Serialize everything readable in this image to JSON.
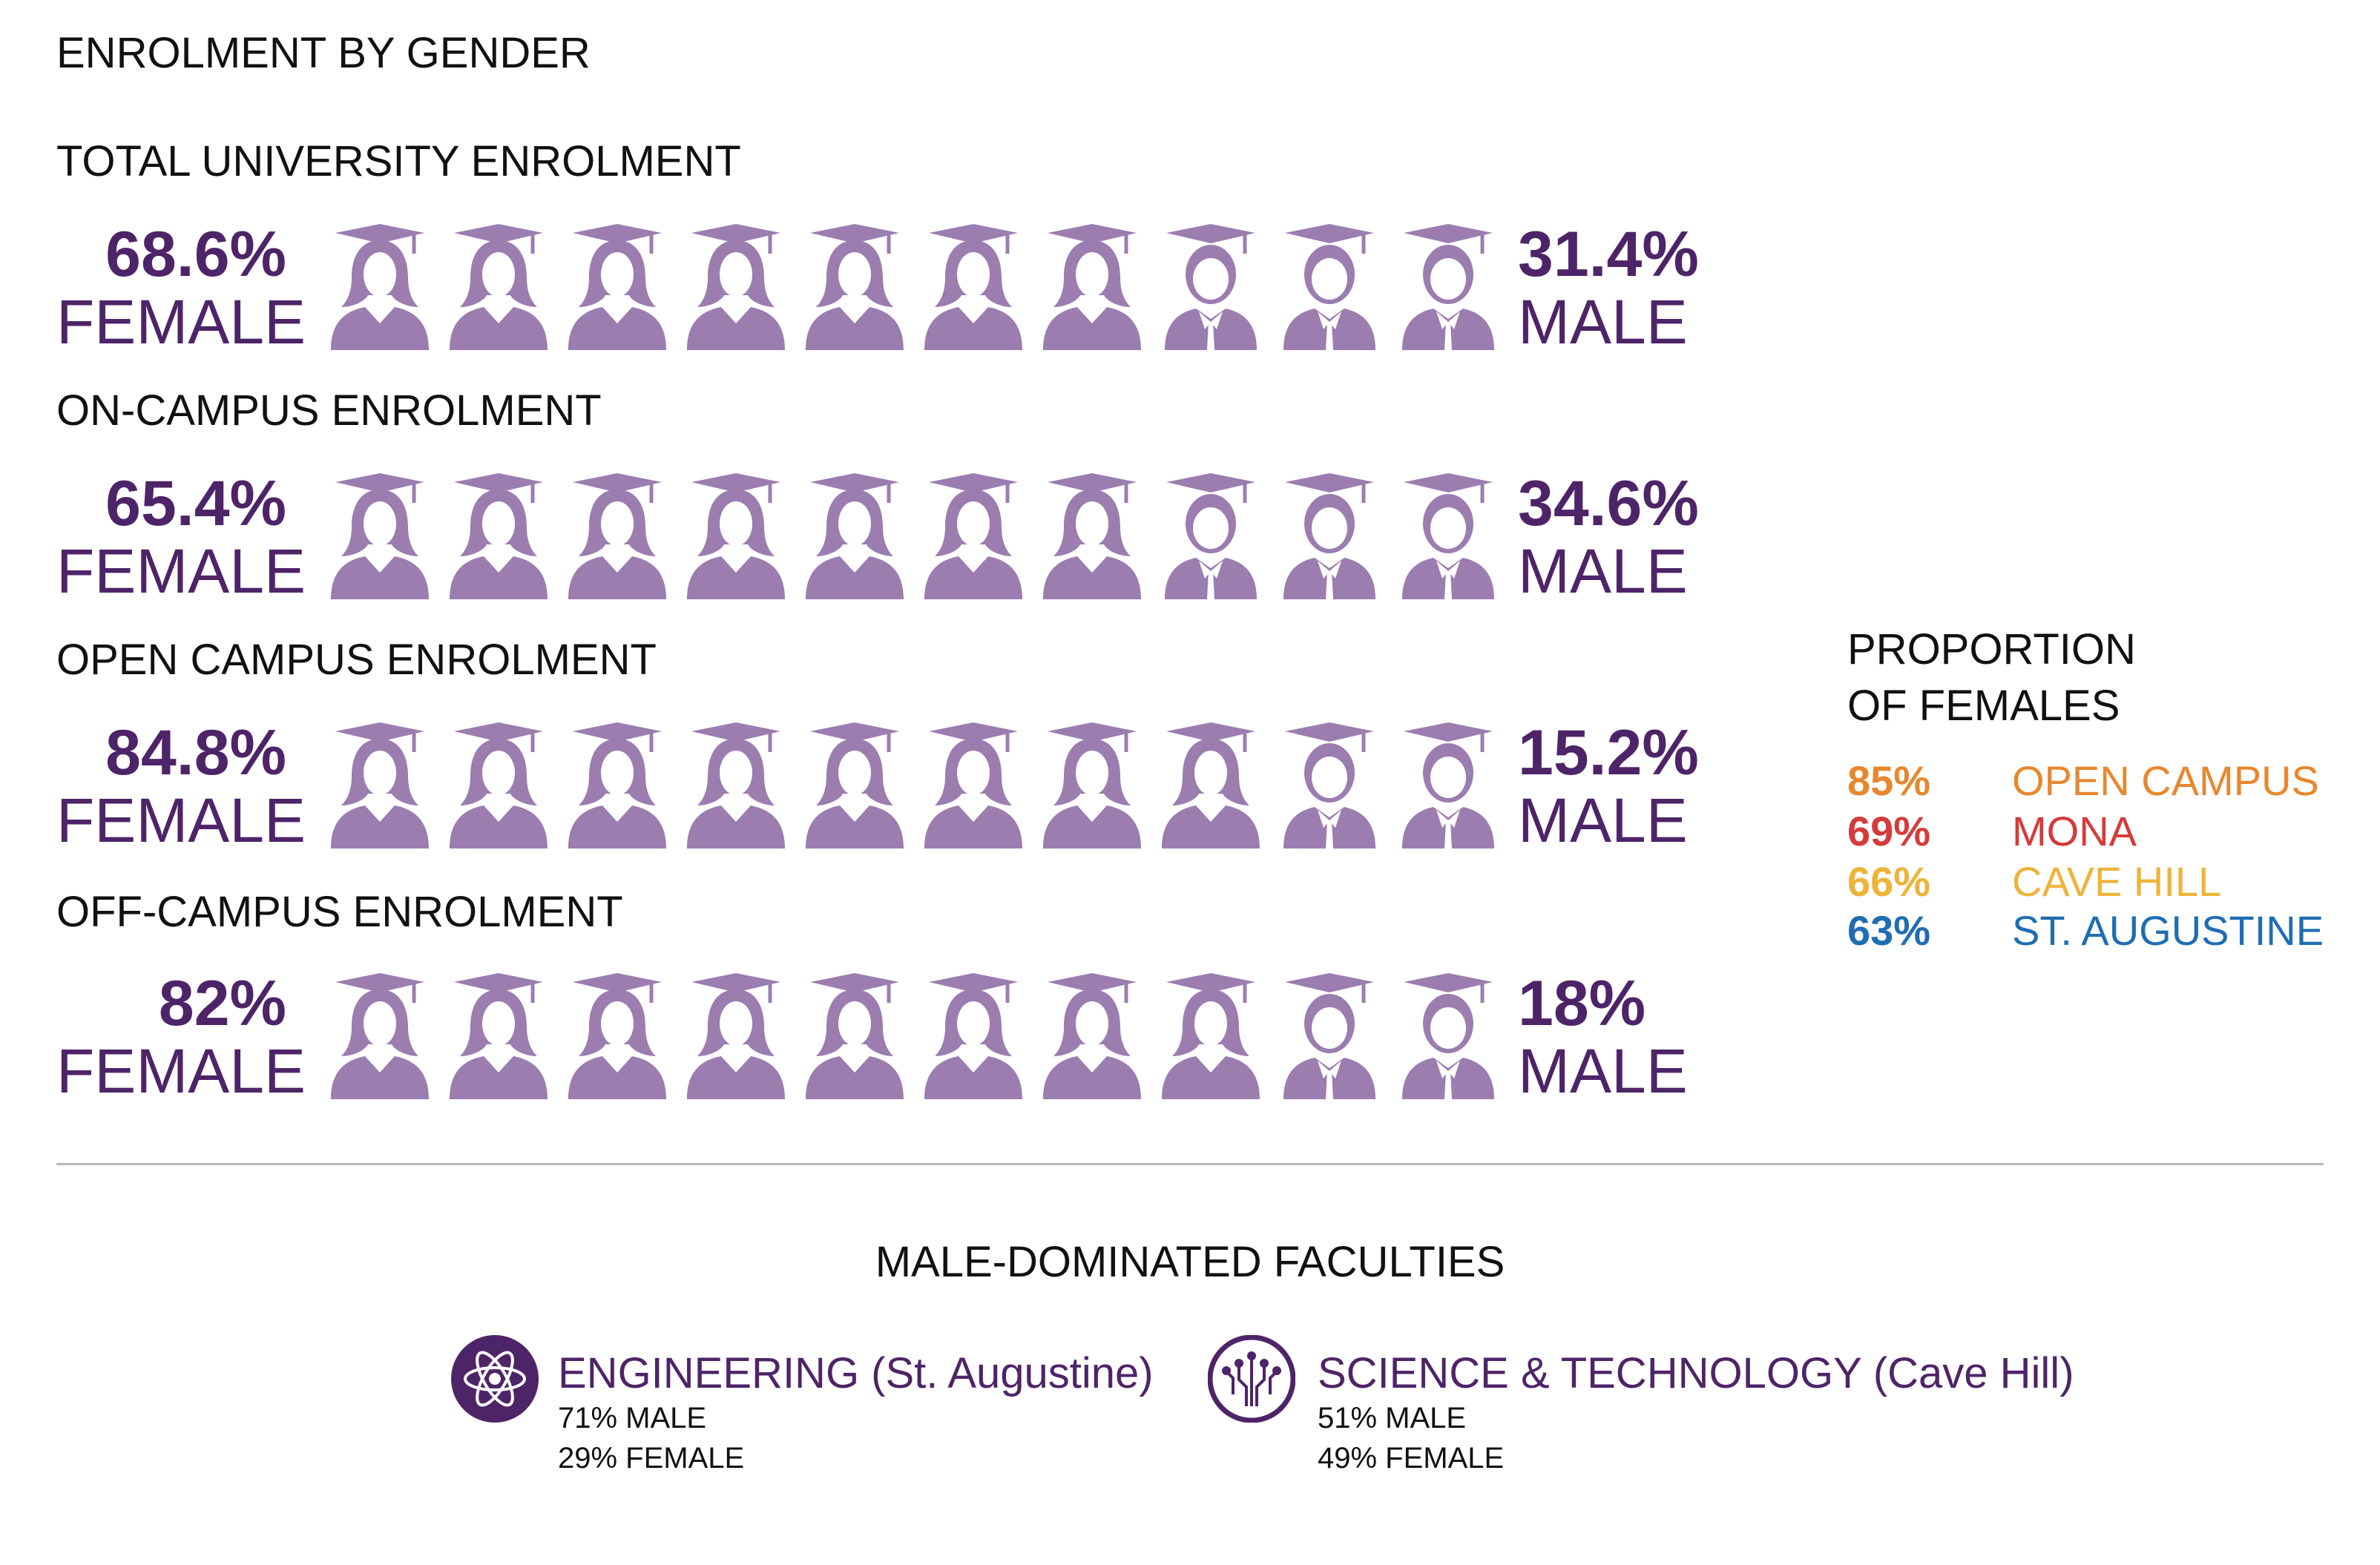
{
  "page_title": "ENROLMENT BY GENDER",
  "colors": {
    "dark_purple": "#4e2468",
    "icon_purple": "#9b7db0",
    "orange": "#e8872e",
    "red": "#d63a3a",
    "yellow": "#edb43a",
    "blue": "#1f6db3"
  },
  "chart_data": [
    {
      "type": "pictograph",
      "title": "TOTAL UNIVERSITY ENROLMENT",
      "icons_total": 10,
      "female_icons": 7,
      "male_icons": 3,
      "female_pct": "68.6%",
      "female_label": "FEMALE",
      "male_pct": "31.4%",
      "male_label": "MALE",
      "values": {
        "female": 68.6,
        "male": 31.4
      }
    },
    {
      "type": "pictograph",
      "title": "ON-CAMPUS ENROLMENT",
      "icons_total": 10,
      "female_icons": 7,
      "male_icons": 3,
      "female_pct": "65.4%",
      "female_label": "FEMALE",
      "male_pct": "34.6%",
      "male_label": "MALE",
      "values": {
        "female": 65.4,
        "male": 34.6
      }
    },
    {
      "type": "pictograph",
      "title": "OPEN CAMPUS ENROLMENT",
      "icons_total": 10,
      "female_icons": 8,
      "male_icons": 2,
      "female_pct": "84.8%",
      "female_label": "FEMALE",
      "male_pct": "15.2%",
      "male_label": "MALE",
      "values": {
        "female": 84.8,
        "male": 15.2
      }
    },
    {
      "type": "pictograph",
      "title": "OFF-CAMPUS ENROLMENT",
      "icons_total": 10,
      "female_icons": 8,
      "male_icons": 2,
      "female_pct": "82%",
      "female_label": "FEMALE",
      "male_pct": "18%",
      "male_label": "MALE",
      "values": {
        "female": 82,
        "male": 18
      }
    }
  ],
  "proportion": {
    "title_line1": "PROPORTION",
    "title_line2": "OF FEMALES",
    "items": [
      {
        "pct": "85%",
        "name": "OPEN CAMPUS",
        "color": "#e8872e"
      },
      {
        "pct": "69%",
        "name": "MONA",
        "color": "#d63a3a"
      },
      {
        "pct": "66%",
        "name": "CAVE HILL",
        "color": "#edb43a"
      },
      {
        "pct": "63%",
        "name": "ST. AUGUSTINE",
        "color": "#1f6db3"
      }
    ]
  },
  "faculties": {
    "title": "MALE-DOMINATED FACULTIES",
    "items": [
      {
        "name": "ENGINEERING (St. Augustine)",
        "male": "71% MALE",
        "female": "29% FEMALE",
        "icon": "atom-icon"
      },
      {
        "name": "SCIENCE & TECHNOLOGY (Cave Hill)",
        "male": "51% MALE",
        "female": "49% FEMALE",
        "icon": "circuit-icon"
      }
    ]
  }
}
